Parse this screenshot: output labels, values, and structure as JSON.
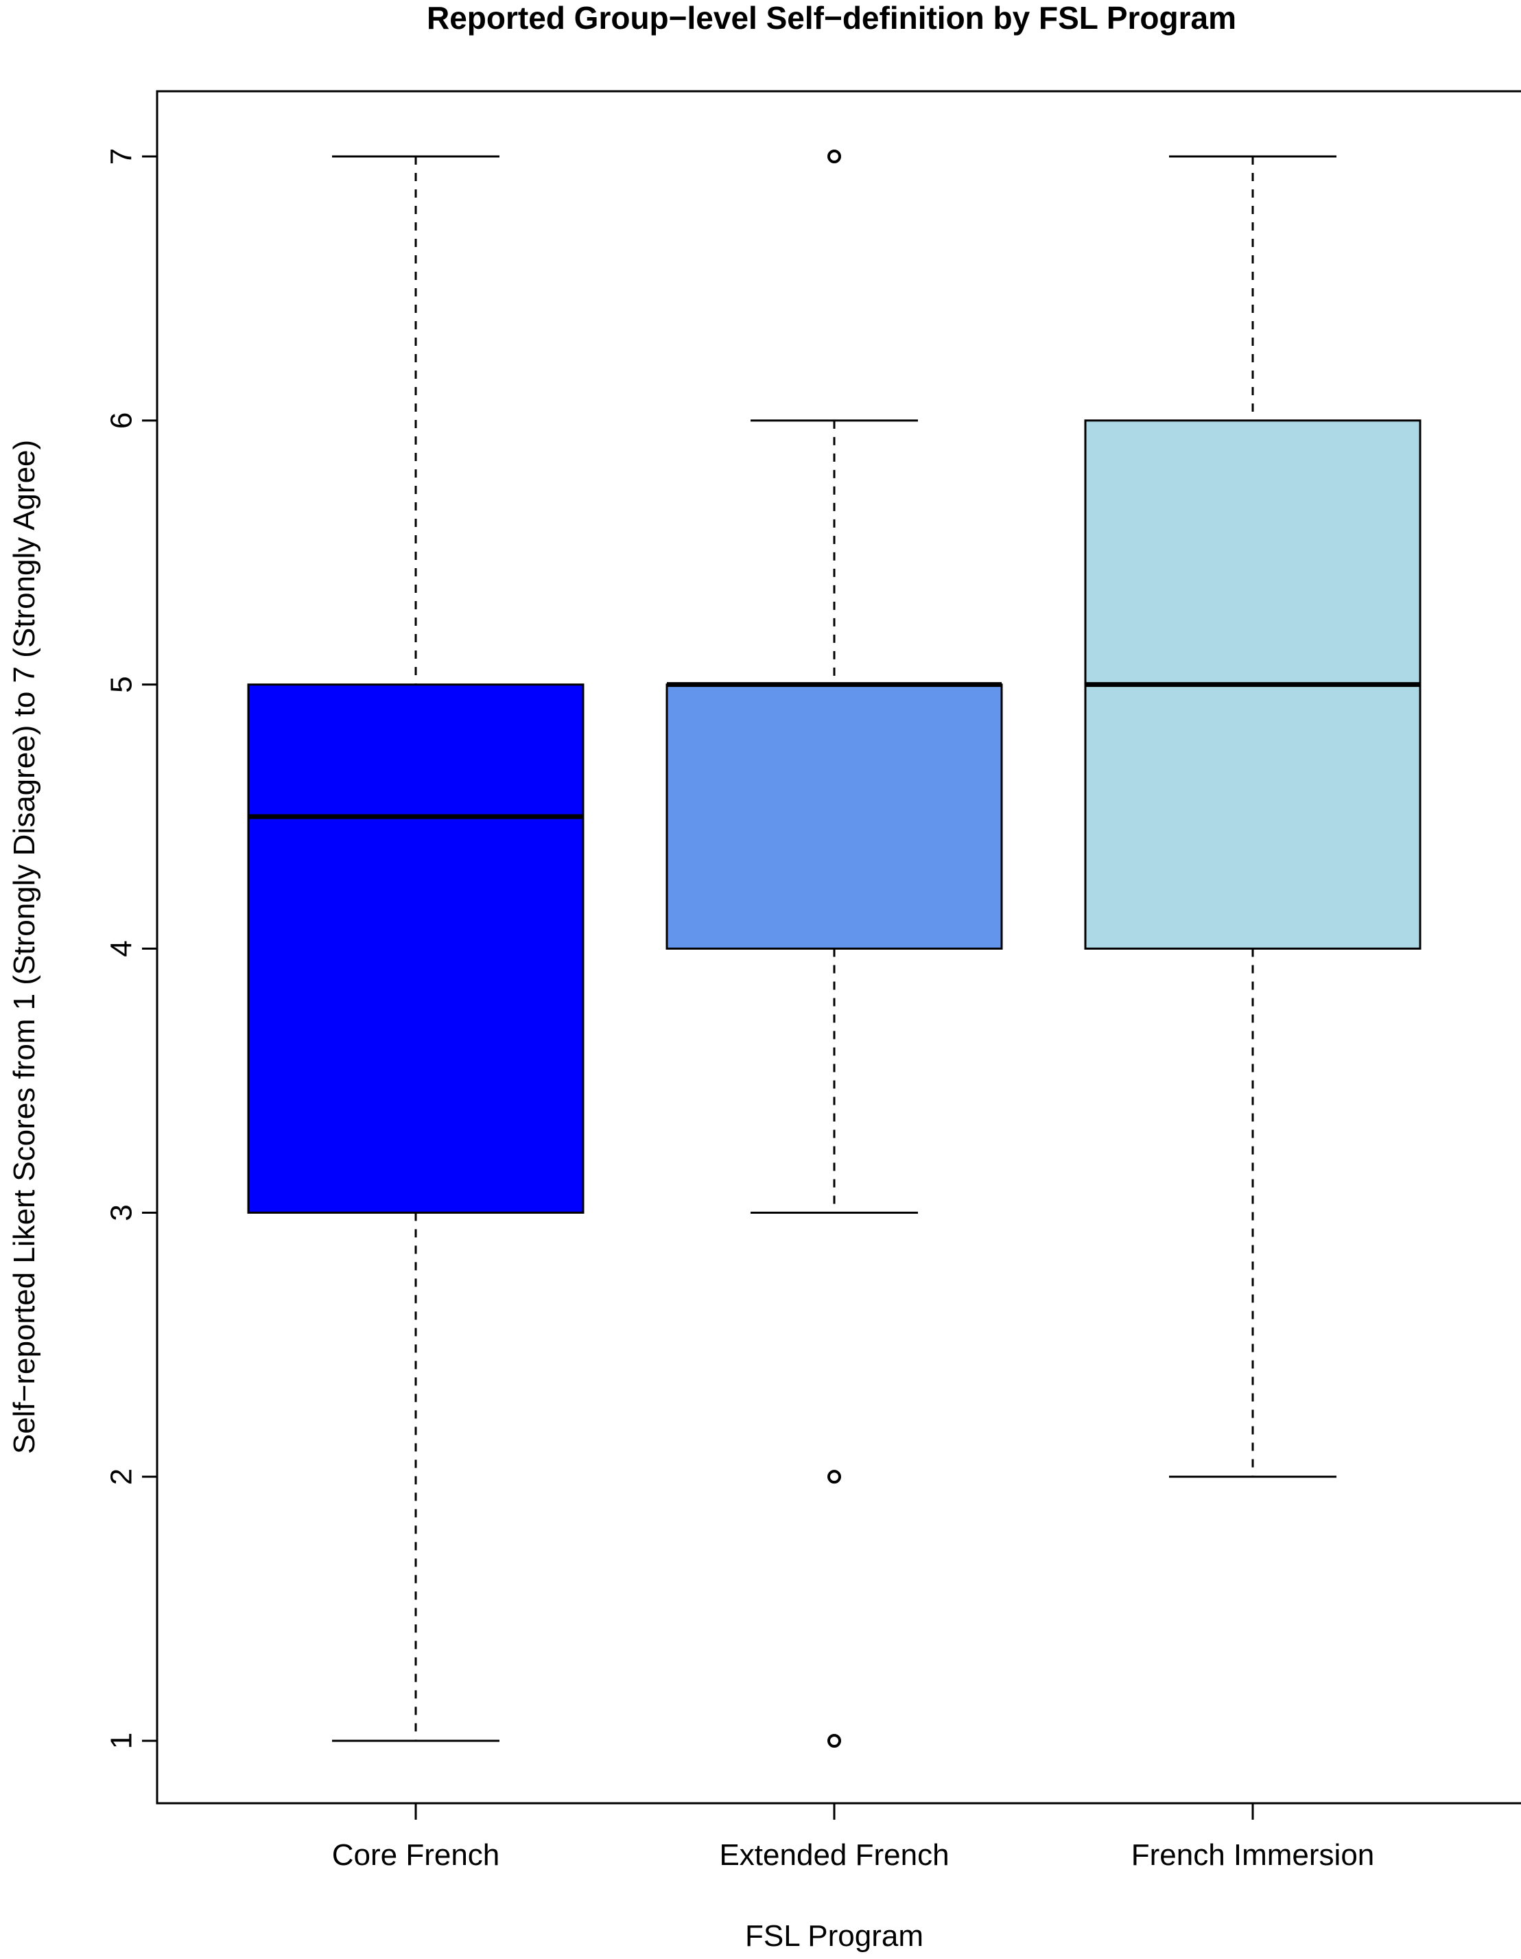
{
  "chart_data": {
    "type": "boxplot",
    "title": "Reported Group−level Self−definition by FSL Program",
    "xlabel": "FSL Program",
    "ylabel": "Self−reported Likert Scores from 1 (Strongly Disagree) to 7 (Strongly Agree)",
    "ylim": [
      0.76,
      7.24
    ],
    "yticks": [
      1,
      2,
      3,
      4,
      5,
      6,
      7
    ],
    "grid": false,
    "legend": "none",
    "categories": [
      "Core French",
      "Extended French",
      "French Immersion"
    ],
    "boxes": [
      {
        "category": "Core French",
        "whisker_low": 1,
        "q1": 3,
        "median": 4.5,
        "q3": 5,
        "whisker_high": 7,
        "outliers": [],
        "color": "#0000FF"
      },
      {
        "category": "Extended French",
        "whisker_low": 3,
        "q1": 4,
        "median": 5,
        "q3": 5,
        "whisker_high": 6,
        "outliers": [
          7,
          2,
          1
        ],
        "color": "#6495ED"
      },
      {
        "category": "French Immersion",
        "whisker_low": 2,
        "q1": 4,
        "median": 5,
        "q3": 6,
        "whisker_high": 7,
        "outliers": [],
        "color": "#ADD8E6"
      }
    ]
  }
}
